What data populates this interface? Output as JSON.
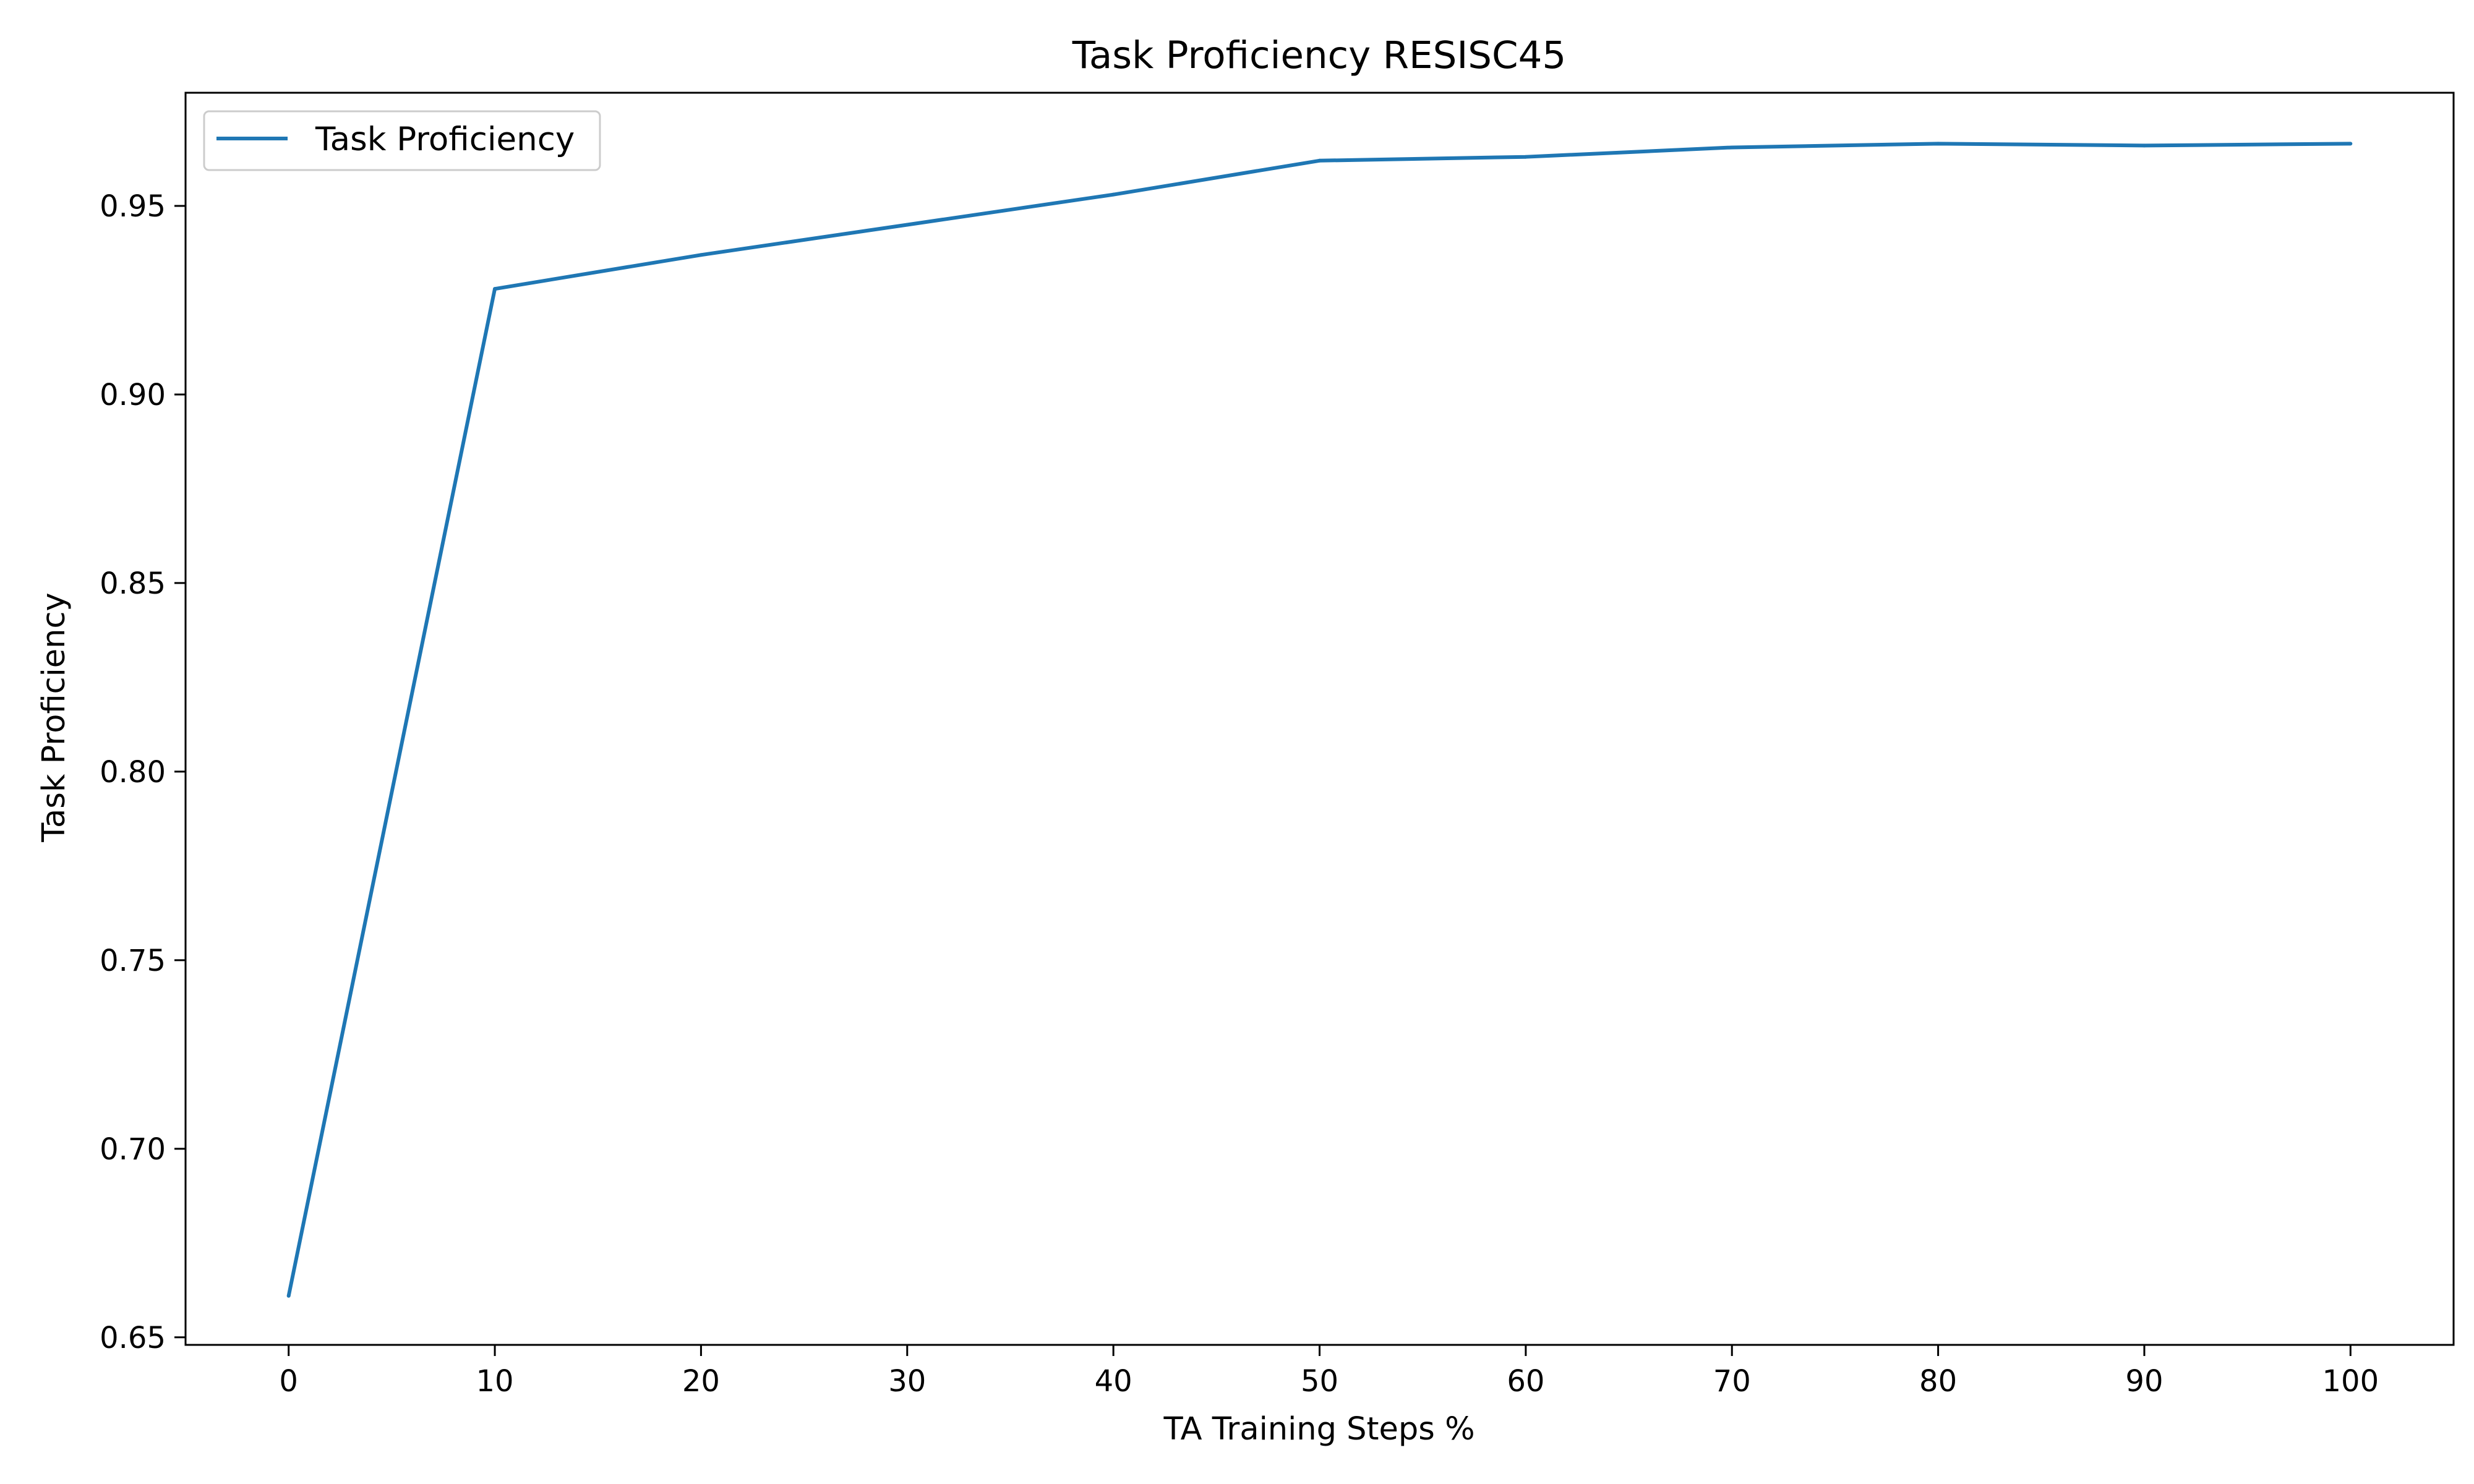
{
  "chart_data": {
    "type": "line",
    "title": "Task Proficiency RESISC45",
    "xlabel": "TA Training Steps %",
    "ylabel": "Task Proficiency",
    "x": [
      0,
      10,
      20,
      30,
      40,
      50,
      60,
      70,
      80,
      90,
      100
    ],
    "series": [
      {
        "name": "Task Proficiency",
        "color": "#1f77b4",
        "values": [
          0.661,
          0.928,
          0.937,
          0.945,
          0.953,
          0.962,
          0.963,
          0.9655,
          0.9665,
          0.966,
          0.9665
        ]
      }
    ],
    "xlim": [
      -5,
      105
    ],
    "ylim": [
      0.648,
      0.98
    ],
    "xticks": [
      "0",
      "10",
      "20",
      "30",
      "40",
      "50",
      "60",
      "70",
      "80",
      "90",
      "100"
    ],
    "yticks": [
      "0.65",
      "0.70",
      "0.75",
      "0.80",
      "0.85",
      "0.90",
      "0.95"
    ],
    "legend_position": "upper-left",
    "grid": false
  }
}
